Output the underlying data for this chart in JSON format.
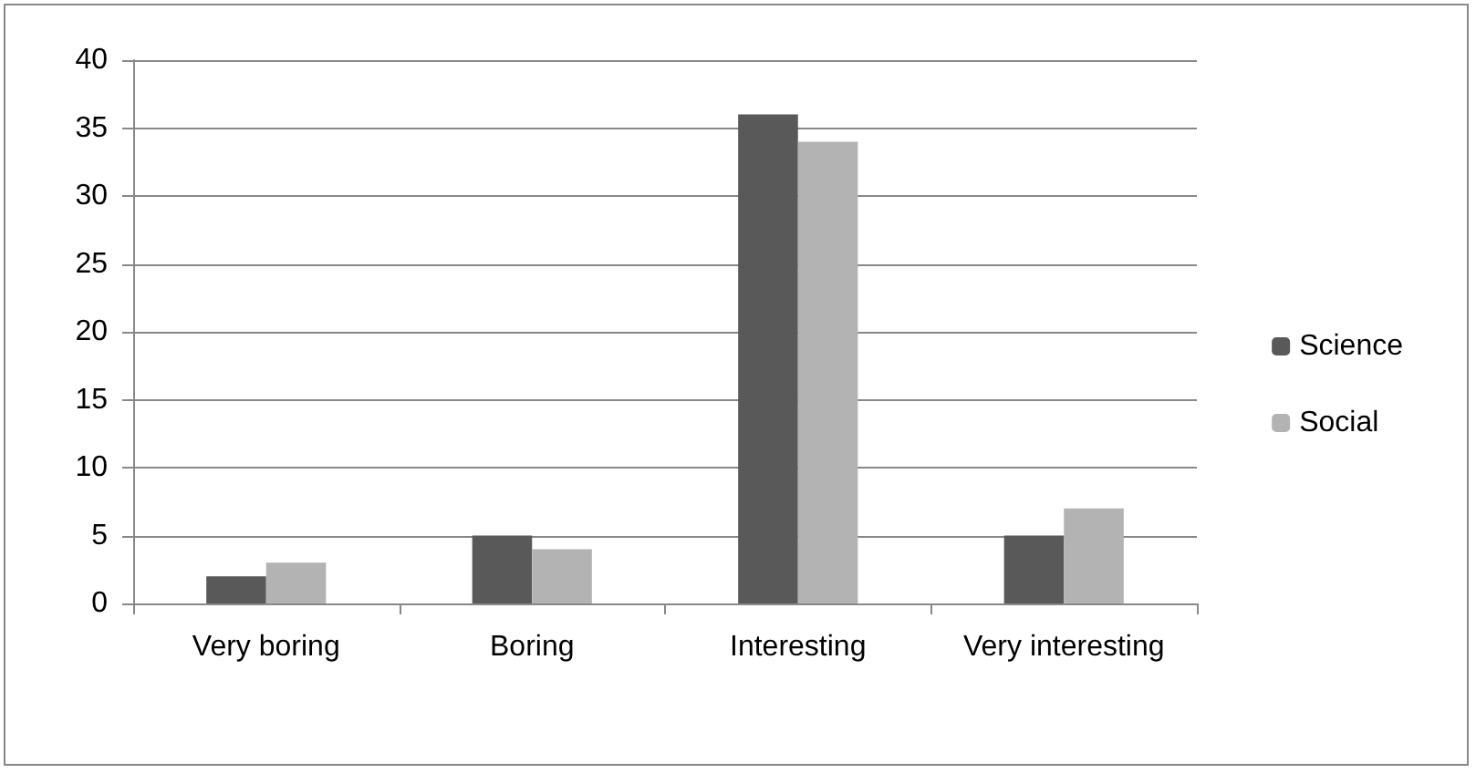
{
  "chart_data": {
    "type": "bar",
    "categories": [
      "Very boring",
      "Boring",
      "Interesting",
      "Very interesting"
    ],
    "series": [
      {
        "name": "Science",
        "color": "#595959",
        "values": [
          2,
          5,
          36,
          5
        ]
      },
      {
        "name": "Social",
        "color": "#b3b3b3",
        "values": [
          3,
          4,
          34,
          7
        ]
      }
    ],
    "ylim": [
      0,
      40
    ],
    "yticks": [
      0,
      5,
      10,
      15,
      20,
      25,
      30,
      35,
      40
    ],
    "grid": "y",
    "legend": "right"
  }
}
